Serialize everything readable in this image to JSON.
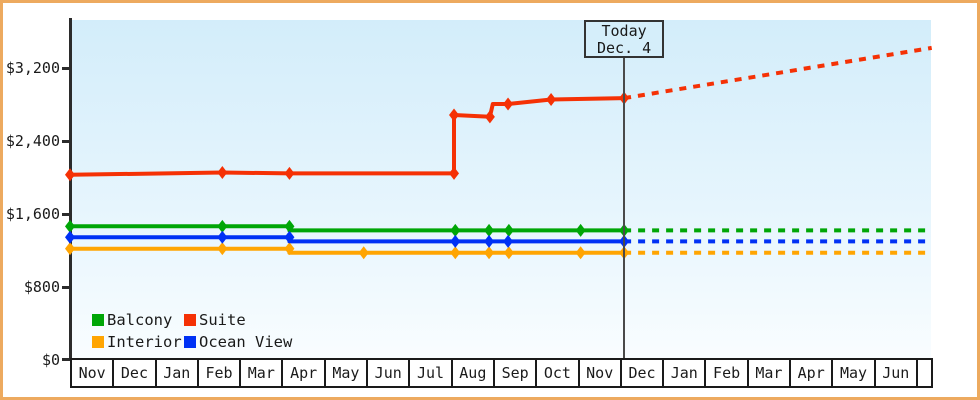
{
  "chart_data": {
    "type": "line",
    "description": "Cruise cabin price history and forecast",
    "y_axis": {
      "ticks": [
        0,
        800,
        1600,
        2400,
        3200
      ],
      "tick_labels": [
        "$0",
        "$800",
        "$1,600",
        "$2,400",
        "$3,200"
      ],
      "range": [
        0,
        3700
      ]
    },
    "x_axis": {
      "months": [
        "Nov",
        "Dec",
        "Jan",
        "Feb",
        "Mar",
        "Apr",
        "May",
        "Jun",
        "Jul",
        "Aug",
        "Sep",
        "Oct",
        "Nov",
        "Dec",
        "Jan",
        "Feb",
        "Mar",
        "Apr",
        "May",
        "Jun"
      ]
    },
    "today_marker": {
      "line1": "Today",
      "line2": "Dec. 4",
      "month_offset": 13.13
    },
    "series": [
      {
        "name": "Balcony",
        "color": "#00A607",
        "solid": [
          [
            0,
            1465
          ],
          [
            3.61,
            1465
          ],
          [
            5.2,
            1465
          ],
          [
            5.2,
            1420
          ],
          [
            13.13,
            1420
          ]
        ],
        "markers": [
          [
            0,
            1465
          ],
          [
            3.61,
            1465
          ],
          [
            5.2,
            1465
          ],
          [
            9.13,
            1420
          ],
          [
            9.93,
            1420
          ],
          [
            10.4,
            1420
          ],
          [
            12.1,
            1420
          ],
          [
            13.13,
            1420
          ]
        ],
        "projection": [
          [
            13.13,
            1420
          ],
          [
            20.42,
            1420
          ]
        ]
      },
      {
        "name": "Suite",
        "color": "#F53105",
        "solid": [
          [
            0,
            2030
          ],
          [
            3.61,
            2055
          ],
          [
            5.2,
            2045
          ],
          [
            9.1,
            2045
          ],
          [
            9.1,
            2685
          ],
          [
            9.95,
            2665
          ],
          [
            10.02,
            2805
          ],
          [
            10.38,
            2805
          ],
          [
            11.4,
            2855
          ],
          [
            13.13,
            2870
          ]
        ],
        "markers": [
          [
            0,
            2030
          ],
          [
            3.61,
            2055
          ],
          [
            5.2,
            2045
          ],
          [
            9.1,
            2045
          ],
          [
            9.1,
            2685
          ],
          [
            9.95,
            2665
          ],
          [
            10.38,
            2805
          ],
          [
            11.4,
            2855
          ],
          [
            13.13,
            2870
          ]
        ],
        "projection": [
          [
            13.13,
            2870
          ],
          [
            20.42,
            3420
          ]
        ]
      },
      {
        "name": "Interior",
        "color": "#FFA502",
        "solid": [
          [
            0,
            1220
          ],
          [
            3.61,
            1220
          ],
          [
            5.2,
            1220
          ],
          [
            5.2,
            1175
          ],
          [
            13.13,
            1175
          ]
        ],
        "markers": [
          [
            0,
            1220
          ],
          [
            3.61,
            1220
          ],
          [
            5.2,
            1220
          ],
          [
            6.96,
            1175
          ],
          [
            9.13,
            1175
          ],
          [
            9.93,
            1175
          ],
          [
            10.4,
            1175
          ],
          [
            12.1,
            1175
          ],
          [
            13.13,
            1175
          ]
        ],
        "projection": [
          [
            13.13,
            1175
          ],
          [
            20.42,
            1175
          ]
        ]
      },
      {
        "name": "Ocean View",
        "color": "#0031F5",
        "solid": [
          [
            0,
            1345
          ],
          [
            3.61,
            1345
          ],
          [
            5.2,
            1345
          ],
          [
            5.2,
            1300
          ],
          [
            13.13,
            1300
          ]
        ],
        "markers": [
          [
            0,
            1345
          ],
          [
            3.61,
            1345
          ],
          [
            5.2,
            1345
          ],
          [
            9.13,
            1300
          ],
          [
            9.93,
            1300
          ],
          [
            10.38,
            1300
          ],
          [
            13.13,
            1300
          ]
        ],
        "projection": [
          [
            13.13,
            1300
          ],
          [
            20.42,
            1300
          ]
        ]
      }
    ],
    "legend": {
      "items": [
        {
          "label": "Balcony",
          "color": "#00A607"
        },
        {
          "label": "Suite",
          "color": "#F53105"
        },
        {
          "label": "Interior",
          "color": "#FFA502"
        },
        {
          "label": "Ocean View",
          "color": "#0031F5"
        }
      ]
    },
    "layout": {
      "grid": false,
      "legend_position": "bottom-left",
      "projection_style": "dashed"
    }
  }
}
